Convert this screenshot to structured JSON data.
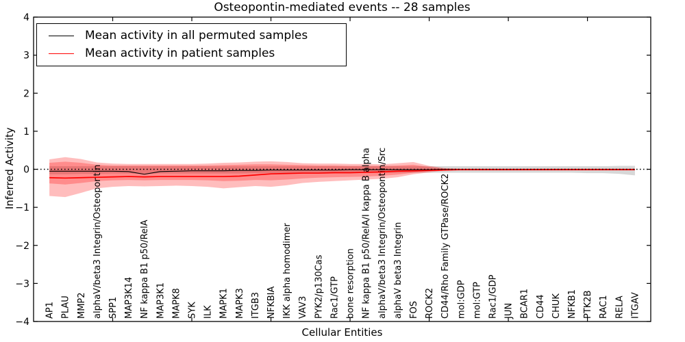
{
  "figure": {
    "title": "Osteopontin-mediated events -- 28 samples",
    "xlabel": "Cellular Entities",
    "ylabel": "Inferred Activity"
  },
  "legend": {
    "items": [
      {
        "label": "Mean activity in all permuted samples",
        "color": "#000000"
      },
      {
        "label": "Mean activity in patient samples",
        "color": "#ff0000"
      }
    ]
  },
  "chart_data": {
    "type": "line",
    "title": "Osteopontin-mediated events -- 28 samples",
    "xlabel": "Cellular Entities",
    "ylabel": "Inferred Activity",
    "ylim": [
      -4,
      4
    ],
    "xlim": [
      0,
      39
    ],
    "grid": false,
    "legend_position": "upper left",
    "ytick_labels": [
      "4",
      "3",
      "2",
      "1",
      "0",
      "−1",
      "−2",
      "−3",
      "−4"
    ],
    "ytick_values": [
      4,
      3,
      2,
      1,
      0,
      -1,
      -2,
      -3,
      -4
    ],
    "xtick_major_positions": [
      5,
      10,
      15,
      20,
      25,
      30,
      35
    ],
    "zero_line": {
      "y": 0,
      "style": "dotted",
      "color": "#000000"
    },
    "categories": [
      "AP1",
      "PLAU",
      "MMP2",
      "alphaV/beta3 Integrin/Osteopontin",
      "SPP1",
      "MAP3K14",
      "NF kappa B1 p50/RelA",
      "MAP3K1",
      "MAPK8",
      "SYK",
      "ILK",
      "MAPK1",
      "MAPK3",
      "ITGB3",
      "NFKBIA",
      "IKK alpha homodimer",
      "VAV3",
      "PYK2/p130Cas",
      "Rac1/GTP",
      "bone resorption",
      "NF kappa B1 p50/RelA/I kappa B alpha",
      "alphaV/beta3 Integrin/Osteopontin/Src",
      "alphaV beta3 Integrin",
      "FOS",
      "ROCK2",
      "CD44/Rho Family GTPase/ROCK2",
      "mol:GDP",
      "mol:GTP",
      "Rac1/GDP",
      "JUN",
      "BCAR1",
      "CD44",
      "CHUK",
      "NFKB1",
      "PTK2B",
      "RAC1",
      "RELA",
      "ITGAV"
    ],
    "series": [
      {
        "name": "Mean activity in all permuted samples",
        "color": "#000000",
        "width": 1.1,
        "values": [
          -0.05,
          -0.05,
          -0.05,
          -0.05,
          -0.05,
          -0.06,
          -0.13,
          -0.06,
          -0.05,
          -0.04,
          -0.04,
          -0.04,
          -0.03,
          -0.03,
          -0.02,
          -0.02,
          -0.02,
          -0.02,
          -0.02,
          -0.01,
          -0.01,
          -0.01,
          -0.01,
          -0.01,
          -0.01,
          0,
          0,
          0,
          0,
          0,
          0,
          0,
          0,
          0,
          0,
          0,
          0,
          0
        ]
      },
      {
        "name": "Mean activity in patient samples",
        "color": "#ff0000",
        "width": 1.7,
        "values": [
          -0.22,
          -0.23,
          -0.22,
          -0.21,
          -0.2,
          -0.19,
          -0.2,
          -0.19,
          -0.19,
          -0.19,
          -0.19,
          -0.19,
          -0.18,
          -0.15,
          -0.12,
          -0.11,
          -0.1,
          -0.1,
          -0.09,
          -0.09,
          -0.08,
          -0.07,
          -0.05,
          -0.04,
          -0.03,
          -0.02,
          -0.01,
          -0.01,
          -0.01,
          -0.01,
          -0.01,
          -0.01,
          -0.01,
          -0.01,
          -0.01,
          -0.01,
          -0.01,
          -0.01
        ]
      }
    ],
    "bands": [
      {
        "name": "permuted-samples-range",
        "color": "#b0b0b0",
        "opacity": 0.5,
        "upper": [
          0.08,
          0.08,
          0.08,
          0.08,
          0.08,
          0.08,
          0.08,
          0.08,
          0.08,
          0.08,
          0.08,
          0.08,
          0.08,
          0.08,
          0.08,
          0.08,
          0.08,
          0.08,
          0.08,
          0.08,
          0.08,
          0.08,
          0.08,
          0.08,
          0.08,
          0.08,
          0.08,
          0.08,
          0.08,
          0.08,
          0.08,
          0.08,
          0.08,
          0.08,
          0.08,
          0.08,
          0.09,
          0.09
        ],
        "lower": [
          -0.13,
          -0.13,
          -0.12,
          -0.12,
          -0.11,
          -0.11,
          -0.12,
          -0.11,
          -0.11,
          -0.11,
          -0.11,
          -0.11,
          -0.11,
          -0.1,
          -0.1,
          -0.1,
          -0.1,
          -0.1,
          -0.1,
          -0.09,
          -0.09,
          -0.09,
          -0.09,
          -0.09,
          -0.09,
          -0.09,
          -0.09,
          -0.09,
          -0.09,
          -0.09,
          -0.09,
          -0.09,
          -0.09,
          -0.09,
          -0.1,
          -0.1,
          -0.12,
          -0.16
        ]
      },
      {
        "name": "patient-samples-range-outer",
        "color": "#ff0000",
        "opacity": 0.26,
        "upper": [
          0.26,
          0.32,
          0.27,
          0.18,
          0.15,
          0.14,
          0.14,
          0.14,
          0.14,
          0.14,
          0.15,
          0.17,
          0.18,
          0.2,
          0.21,
          0.19,
          0.16,
          0.15,
          0.15,
          0.14,
          0.14,
          0.13,
          0.16,
          0.19,
          0.09,
          0.03,
          0.02,
          0.02,
          0.02,
          0.02,
          0.02,
          0.02,
          0.02,
          0.02,
          0.02,
          0.02,
          0.02,
          0.02
        ],
        "lower": [
          -0.7,
          -0.73,
          -0.62,
          -0.5,
          -0.46,
          -0.44,
          -0.45,
          -0.44,
          -0.43,
          -0.44,
          -0.46,
          -0.5,
          -0.47,
          -0.44,
          -0.46,
          -0.42,
          -0.36,
          -0.33,
          -0.31,
          -0.29,
          -0.27,
          -0.25,
          -0.21,
          -0.13,
          -0.08,
          -0.03,
          -0.03,
          -0.03,
          -0.03,
          -0.03,
          -0.03,
          -0.03,
          -0.03,
          -0.03,
          -0.03,
          -0.03,
          -0.03,
          -0.03
        ]
      },
      {
        "name": "patient-samples-range-inner",
        "color": "#ff0000",
        "opacity": 0.26,
        "upper": [
          0.17,
          0.2,
          0.17,
          0.12,
          0.1,
          0.1,
          0.1,
          0.1,
          0.1,
          0.1,
          0.1,
          0.11,
          0.12,
          0.13,
          0.13,
          0.12,
          0.11,
          0.1,
          0.1,
          0.09,
          0.09,
          0.09,
          0.1,
          0.12,
          0.06,
          0.02,
          0.01,
          0.01,
          0.01,
          0.01,
          0.01,
          0.01,
          0.01,
          0.01,
          0.01,
          0.01,
          0.01,
          0.01
        ],
        "lower": [
          -0.37,
          -0.4,
          -0.36,
          -0.31,
          -0.29,
          -0.28,
          -0.29,
          -0.28,
          -0.28,
          -0.28,
          -0.29,
          -0.31,
          -0.3,
          -0.28,
          -0.29,
          -0.27,
          -0.24,
          -0.22,
          -0.21,
          -0.2,
          -0.19,
          -0.17,
          -0.14,
          -0.09,
          -0.05,
          -0.02,
          -0.02,
          -0.02,
          -0.02,
          -0.02,
          -0.02,
          -0.02,
          -0.02,
          -0.02,
          -0.02,
          -0.02,
          -0.02,
          -0.02
        ]
      }
    ]
  }
}
